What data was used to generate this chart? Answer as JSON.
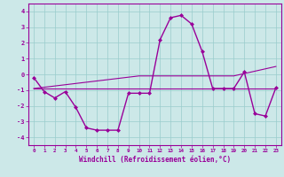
{
  "xlabel": "Windchill (Refroidissement éolien,°C)",
  "bg_color": "#cce8e8",
  "grid_color": "#99cccc",
  "line_color": "#990099",
  "x": [
    0,
    1,
    2,
    3,
    4,
    5,
    6,
    7,
    8,
    9,
    10,
    11,
    12,
    13,
    14,
    15,
    16,
    17,
    18,
    19,
    20,
    21,
    22,
    23
  ],
  "y_main": [
    -0.2,
    -1.1,
    -1.5,
    -1.1,
    -2.1,
    -3.4,
    -3.55,
    -3.55,
    -3.55,
    -1.2,
    -1.2,
    -1.2,
    2.2,
    3.6,
    3.75,
    3.2,
    1.45,
    -0.9,
    -0.9,
    -0.9,
    0.15,
    -2.5,
    -2.65,
    -0.85
  ],
  "y_linear_slope": [
    -0.9,
    -0.82,
    -0.74,
    -0.66,
    -0.58,
    -0.5,
    -0.42,
    -0.34,
    -0.26,
    -0.18,
    -0.1,
    -0.1,
    -0.1,
    -0.1,
    -0.1,
    -0.1,
    -0.1,
    -0.1,
    -0.1,
    -0.1,
    0.05,
    0.2,
    0.35,
    0.5
  ],
  "y_linear_flat": [
    -0.9,
    -0.9,
    -0.9,
    -0.9,
    -0.9,
    -0.9,
    -0.9,
    -0.9,
    -0.9,
    -0.9,
    -0.9,
    -0.9,
    -0.9,
    -0.9,
    -0.9,
    -0.9,
    -0.9,
    -0.9,
    -0.9,
    -0.9,
    -0.9,
    -0.9,
    -0.9,
    -0.9
  ],
  "ylim": [
    -4.5,
    4.5
  ],
  "xlim": [
    -0.5,
    23.5
  ],
  "yticks": [
    -4,
    -3,
    -2,
    -1,
    0,
    1,
    2,
    3,
    4
  ],
  "xticks": [
    0,
    1,
    2,
    3,
    4,
    5,
    6,
    7,
    8,
    9,
    10,
    11,
    12,
    13,
    14,
    15,
    16,
    17,
    18,
    19,
    20,
    21,
    22,
    23
  ]
}
